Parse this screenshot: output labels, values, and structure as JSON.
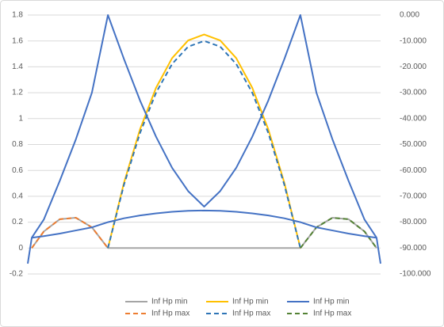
{
  "chart_data": {
    "type": "line",
    "x": [
      0,
      0.5,
      2,
      4,
      6,
      8,
      10,
      12,
      14,
      16,
      18,
      20,
      22,
      24,
      26,
      28,
      30,
      32,
      34,
      36,
      38,
      40,
      42,
      43.5,
      44
    ],
    "xlim": [
      0,
      44
    ],
    "ylim": [
      -0.2,
      1.8
    ],
    "yticks": [
      -0.2,
      0,
      0.2,
      0.4,
      0.6,
      0.8,
      1,
      1.2,
      1.4,
      1.6,
      1.8
    ],
    "y2lim": [
      -100,
      0
    ],
    "y2ticks": [
      {
        "value": -100,
        "label": "-100.000"
      },
      {
        "value": -90,
        "label": "-90.000"
      },
      {
        "value": -80,
        "label": "-80.000"
      },
      {
        "value": -70,
        "label": "-70.000"
      },
      {
        "value": -60,
        "label": "-60.000"
      },
      {
        "value": -50,
        "label": "-50.000"
      },
      {
        "value": -40,
        "label": "-40.000"
      },
      {
        "value": -30,
        "label": "-30.000"
      },
      {
        "value": -20,
        "label": "-20.000"
      },
      {
        "value": -10,
        "label": "-10.000"
      },
      {
        "value": 0,
        "label": "0.000"
      }
    ],
    "grid": true,
    "legend": "bottom",
    "series": [
      {
        "name": "Inf Hp min",
        "color": "#a5a5a5",
        "dashed": false,
        "values": [
          null,
          0,
          0.128,
          0.223,
          0.234,
          0.16,
          0,
          0,
          0,
          0,
          0,
          0,
          0,
          0,
          0,
          0,
          0,
          0,
          0,
          0.16,
          0.234,
          0.223,
          0.128,
          0,
          null
        ]
      },
      {
        "name": "Inf Hp min",
        "color": "#ffc000",
        "dashed": false,
        "values": [
          null,
          null,
          null,
          null,
          null,
          null,
          0,
          0.504,
          0.917,
          1.238,
          1.467,
          1.604,
          1.65,
          1.604,
          1.467,
          1.238,
          0.917,
          0.504,
          0,
          null,
          null,
          null,
          null,
          null,
          null
        ]
      },
      {
        "name": "Inf Hp min",
        "color": "#4472c4",
        "dashed": false,
        "axis": "y2",
        "values": [
          -96,
          -86,
          -79,
          -64,
          -48,
          -30,
          0,
          -17,
          -33,
          -47,
          -59,
          -68,
          -74,
          -68,
          -59,
          -47,
          -33,
          -17,
          0,
          -30,
          -48,
          -64,
          -79,
          -86,
          -96
        ]
      },
      {
        "name": "Inf Hp max",
        "color": "#ed7d31",
        "dashed": true,
        "values": [
          null,
          0,
          0.128,
          0.223,
          0.234,
          0.16,
          0,
          null,
          null,
          null,
          null,
          null,
          null,
          null,
          null,
          null,
          null,
          null,
          null,
          null,
          null,
          null,
          null,
          null,
          null
        ]
      },
      {
        "name": "Inf Hp max",
        "color": "#2e75b6",
        "dashed": true,
        "values": [
          null,
          null,
          null,
          null,
          null,
          null,
          0,
          0.489,
          0.889,
          1.2,
          1.422,
          1.556,
          1.6,
          1.556,
          1.422,
          1.2,
          0.889,
          0.489,
          0,
          null,
          null,
          null,
          null,
          null,
          null
        ]
      },
      {
        "name": "Inf Hp max",
        "color": "#548235",
        "dashed": true,
        "values": [
          null,
          null,
          null,
          null,
          null,
          null,
          null,
          null,
          null,
          null,
          null,
          null,
          null,
          null,
          null,
          null,
          null,
          null,
          0,
          0.16,
          0.234,
          0.223,
          0.128,
          0,
          null
        ]
      },
      {
        "color": "#4472c4",
        "dashed": false,
        "axis": "y2",
        "values": [
          null,
          -86,
          -85.4,
          -84.4,
          -83.2,
          -82,
          -80,
          -78.5,
          -77.4,
          -76.6,
          -76,
          -75.6,
          -75.5,
          -75.6,
          -76,
          -76.6,
          -77.4,
          -78.5,
          -80,
          -82,
          -83.2,
          -84.4,
          -85.4,
          -86,
          null
        ]
      }
    ]
  }
}
